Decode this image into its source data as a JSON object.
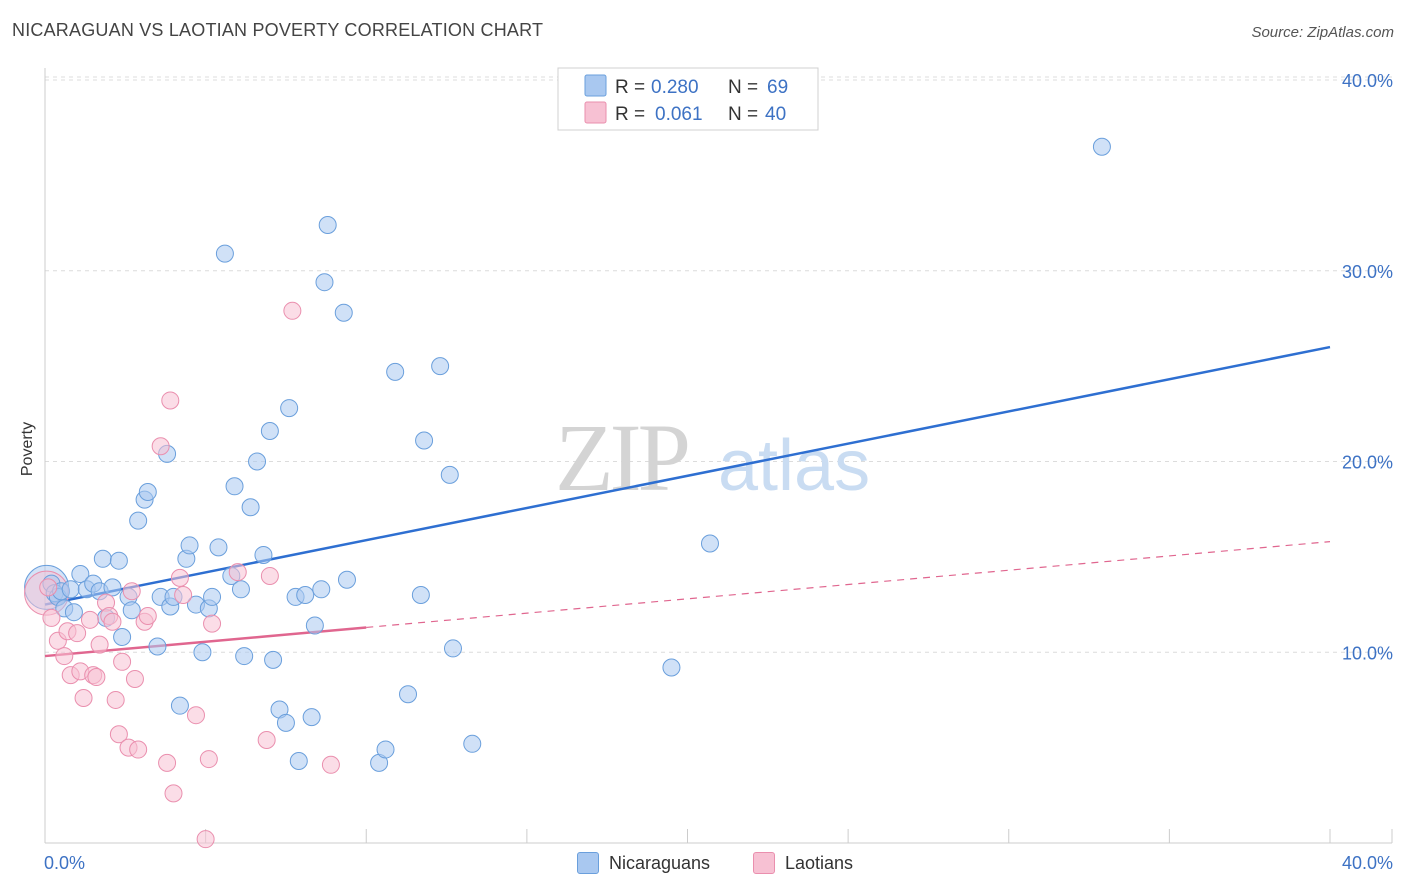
{
  "chart_data": {
    "type": "scatter",
    "title": "NICARAGUAN VS LAOTIAN POVERTY CORRELATION CHART",
    "source": "Source: ZipAtlas.com",
    "ylabel": "Poverty",
    "xlim": [
      0,
      40
    ],
    "ylim": [
      0,
      40
    ],
    "x_tick_labels": [
      "0.0%",
      "40.0%"
    ],
    "y_ticks": [
      10,
      20,
      30,
      40
    ],
    "y_tick_labels": [
      "10.0%",
      "20.0%",
      "30.0%",
      "40.0%"
    ],
    "watermark": {
      "zip": "ZIP",
      "atlas": "atlas"
    },
    "legend": [
      {
        "r_label": "R =",
        "r_value": "0.280",
        "n_label": "N =",
        "n_value": "69"
      },
      {
        "r_label": "R =",
        "r_value": "0.061",
        "n_label": "N =",
        "n_value": "40"
      }
    ],
    "series": [
      {
        "name": "Nicaraguans",
        "color": "#a9c8f0",
        "stroke": "#6a9fdc",
        "line_color": "#2e6fd1",
        "trend": {
          "x0": 0,
          "y0": 12.5,
          "x1": 40,
          "y1": 26.0,
          "dashed_from": null
        },
        "points": [
          [
            0.2,
            13.6
          ],
          [
            0.3,
            13.1
          ],
          [
            0.4,
            12.9
          ],
          [
            0.5,
            13.2
          ],
          [
            0.6,
            12.3
          ],
          [
            0.8,
            13.3
          ],
          [
            0.9,
            12.1
          ],
          [
            1.1,
            14.1
          ],
          [
            1.3,
            13.3
          ],
          [
            1.5,
            13.6
          ],
          [
            1.7,
            13.2
          ],
          [
            1.8,
            14.9
          ],
          [
            1.9,
            11.8
          ],
          [
            2.1,
            13.4
          ],
          [
            2.3,
            14.8
          ],
          [
            2.4,
            10.8
          ],
          [
            2.6,
            12.9
          ],
          [
            2.7,
            12.2
          ],
          [
            2.9,
            16.9
          ],
          [
            3.1,
            18.0
          ],
          [
            3.2,
            18.4
          ],
          [
            3.5,
            10.3
          ],
          [
            3.6,
            12.9
          ],
          [
            3.8,
            20.4
          ],
          [
            3.9,
            12.4
          ],
          [
            4.0,
            12.9
          ],
          [
            4.2,
            7.2
          ],
          [
            4.4,
            14.9
          ],
          [
            4.5,
            15.6
          ],
          [
            4.7,
            12.5
          ],
          [
            4.9,
            10.0
          ],
          [
            5.1,
            12.3
          ],
          [
            5.2,
            12.9
          ],
          [
            5.4,
            15.5
          ],
          [
            5.6,
            30.9
          ],
          [
            5.8,
            14.0
          ],
          [
            5.9,
            18.7
          ],
          [
            6.1,
            13.3
          ],
          [
            6.2,
            9.8
          ],
          [
            6.4,
            17.6
          ],
          [
            6.6,
            20.0
          ],
          [
            6.8,
            15.1
          ],
          [
            7.0,
            21.6
          ],
          [
            7.1,
            9.6
          ],
          [
            7.3,
            7.0
          ],
          [
            7.5,
            6.3
          ],
          [
            7.6,
            22.8
          ],
          [
            7.8,
            12.9
          ],
          [
            7.9,
            4.3
          ],
          [
            8.1,
            13.0
          ],
          [
            8.3,
            6.6
          ],
          [
            8.4,
            11.4
          ],
          [
            8.6,
            13.3
          ],
          [
            8.7,
            29.4
          ],
          [
            8.8,
            32.4
          ],
          [
            9.3,
            27.8
          ],
          [
            9.4,
            13.8
          ],
          [
            10.4,
            4.2
          ],
          [
            10.6,
            4.9
          ],
          [
            10.9,
            24.7
          ],
          [
            11.3,
            7.8
          ],
          [
            11.7,
            13.0
          ],
          [
            11.8,
            21.1
          ],
          [
            12.3,
            25.0
          ],
          [
            12.6,
            19.3
          ],
          [
            12.7,
            10.2
          ],
          [
            13.3,
            5.2
          ],
          [
            19.5,
            9.2
          ],
          [
            20.7,
            15.7
          ],
          [
            32.9,
            36.5
          ]
        ]
      },
      {
        "name": "Laotians",
        "color": "#f7c1d3",
        "stroke": "#ea8fae",
        "line_color": "#e0668f",
        "trend": {
          "x0": 0,
          "y0": 9.8,
          "x1": 40,
          "y1": 15.8,
          "dashed_from": 10.0
        },
        "points": [
          [
            0.2,
            11.8
          ],
          [
            0.4,
            10.6
          ],
          [
            0.6,
            9.8
          ],
          [
            0.7,
            11.1
          ],
          [
            0.8,
            8.8
          ],
          [
            1.0,
            11.0
          ],
          [
            1.1,
            9.0
          ],
          [
            1.2,
            7.6
          ],
          [
            1.4,
            11.7
          ],
          [
            1.5,
            8.8
          ],
          [
            1.6,
            8.7
          ],
          [
            1.7,
            10.4
          ],
          [
            1.9,
            12.6
          ],
          [
            2.0,
            11.9
          ],
          [
            2.1,
            11.6
          ],
          [
            2.2,
            7.5
          ],
          [
            2.3,
            5.7
          ],
          [
            2.4,
            9.5
          ],
          [
            2.6,
            5.0
          ],
          [
            2.7,
            13.2
          ],
          [
            2.8,
            8.6
          ],
          [
            2.9,
            4.9
          ],
          [
            3.1,
            11.6
          ],
          [
            3.2,
            11.9
          ],
          [
            3.6,
            20.8
          ],
          [
            3.8,
            4.2
          ],
          [
            3.9,
            23.2
          ],
          [
            4.0,
            2.6
          ],
          [
            4.2,
            13.9
          ],
          [
            4.3,
            13.0
          ],
          [
            4.7,
            6.7
          ],
          [
            5.0,
            0.2
          ],
          [
            5.1,
            4.4
          ],
          [
            5.2,
            11.5
          ],
          [
            6.0,
            14.2
          ],
          [
            6.9,
            5.4
          ],
          [
            7.0,
            14.0
          ],
          [
            7.7,
            27.9
          ],
          [
            8.9,
            4.1
          ],
          [
            0.1,
            13.4
          ]
        ]
      }
    ],
    "big_points": [
      {
        "series": "Nicaraguans",
        "x": 0.05,
        "y": 13.4
      },
      {
        "series": "Laotians",
        "x": 0.05,
        "y": 13.1
      }
    ]
  }
}
